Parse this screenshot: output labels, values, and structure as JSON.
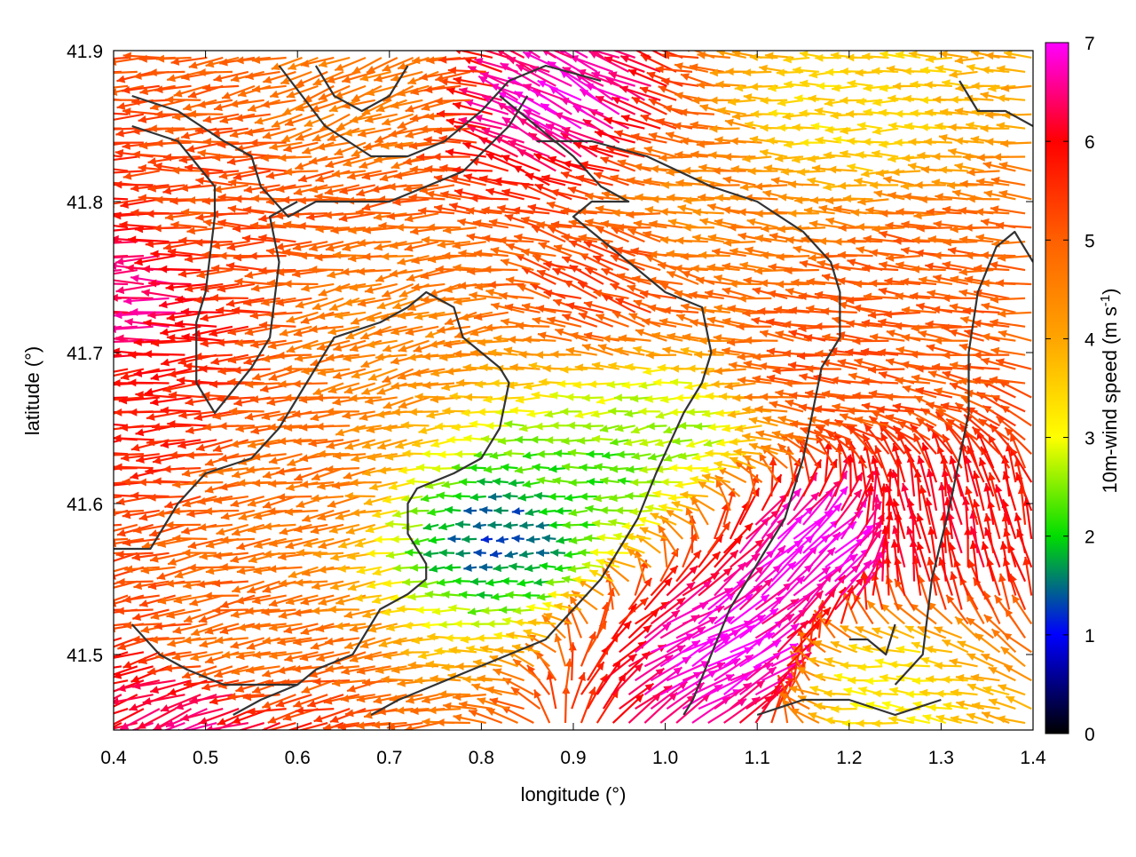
{
  "chart_data": {
    "type": "vector-field",
    "xlabel": "longitude (°)",
    "ylabel": "latitude (°)",
    "xlim": [
      0.4,
      1.4
    ],
    "ylim": [
      41.45,
      41.9
    ],
    "x_ticks": [
      "0.4",
      "0.5",
      "0.6",
      "0.7",
      "0.8",
      "0.9",
      "1.0",
      "1.1",
      "1.2",
      "1.3",
      "1.4"
    ],
    "y_ticks": [
      "41.5",
      "41.6",
      "41.7",
      "41.8",
      "41.9"
    ],
    "grid": false,
    "colorbar": {
      "label_main": "10m-wind speed (m s",
      "label_sup": "-1",
      "label_end": ")",
      "range": [
        0,
        7
      ],
      "ticks": [
        "0",
        "1",
        "2",
        "3",
        "4",
        "5",
        "6",
        "7"
      ],
      "colors": [
        "#000000",
        "#0000ff",
        "#00dd00",
        "#ffff00",
        "#ffa500",
        "#ff6000",
        "#ff0000",
        "#ff00ff"
      ]
    },
    "wind_regions": [
      {
        "lon": 0.43,
        "lat": 41.74,
        "speed": 6.5,
        "dir_deg": 180
      },
      {
        "lon": 0.45,
        "lat": 41.66,
        "speed": 5.8,
        "dir_deg": 185
      },
      {
        "lon": 0.55,
        "lat": 41.78,
        "speed": 5.2,
        "dir_deg": 180
      },
      {
        "lon": 0.6,
        "lat": 41.62,
        "speed": 4.8,
        "dir_deg": 190
      },
      {
        "lon": 0.72,
        "lat": 41.72,
        "speed": 4.5,
        "dir_deg": 195
      },
      {
        "lon": 0.7,
        "lat": 41.87,
        "speed": 4.6,
        "dir_deg": 200
      },
      {
        "lon": 0.9,
        "lat": 41.86,
        "speed": 6.8,
        "dir_deg": 150
      },
      {
        "lon": 0.95,
        "lat": 41.74,
        "speed": 5.3,
        "dir_deg": 160
      },
      {
        "lon": 1.05,
        "lat": 41.8,
        "speed": 4.5,
        "dir_deg": 175
      },
      {
        "lon": 1.2,
        "lat": 41.86,
        "speed": 3.4,
        "dir_deg": 180
      },
      {
        "lon": 1.3,
        "lat": 41.74,
        "speed": 5.0,
        "dir_deg": 175
      },
      {
        "lon": 0.83,
        "lat": 41.58,
        "speed": 1.4,
        "dir_deg": 185
      },
      {
        "lon": 0.92,
        "lat": 41.62,
        "speed": 2.2,
        "dir_deg": 180
      },
      {
        "lon": 1.0,
        "lat": 41.65,
        "speed": 2.6,
        "dir_deg": 190
      },
      {
        "lon": 1.15,
        "lat": 41.56,
        "speed": 7.0,
        "dir_deg": 40
      },
      {
        "lon": 1.05,
        "lat": 41.5,
        "speed": 7.0,
        "dir_deg": 30
      },
      {
        "lon": 1.3,
        "lat": 41.57,
        "speed": 6.0,
        "dir_deg": 100
      },
      {
        "lon": 1.25,
        "lat": 41.48,
        "speed": 3.2,
        "dir_deg": 175
      },
      {
        "lon": 0.55,
        "lat": 41.5,
        "speed": 4.8,
        "dir_deg": 190
      },
      {
        "lon": 0.5,
        "lat": 41.46,
        "speed": 6.5,
        "dir_deg": 200
      },
      {
        "lon": 1.2,
        "lat": 41.7,
        "speed": 5.2,
        "dir_deg": 175
      }
    ],
    "contours": [
      [
        [
          0.42,
          41.87
        ],
        [
          0.47,
          41.86
        ],
        [
          0.52,
          41.84
        ],
        [
          0.55,
          41.83
        ],
        [
          0.56,
          41.81
        ],
        [
          0.59,
          41.79
        ],
        [
          0.62,
          41.8
        ],
        [
          0.7,
          41.8
        ],
        [
          0.78,
          41.82
        ],
        [
          0.83,
          41.85
        ],
        [
          0.85,
          41.87
        ]
      ],
      [
        [
          0.42,
          41.85
        ],
        [
          0.47,
          41.84
        ],
        [
          0.51,
          41.81
        ],
        [
          0.51,
          41.79
        ],
        [
          0.5,
          41.74
        ],
        [
          0.49,
          41.72
        ],
        [
          0.49,
          41.68
        ],
        [
          0.51,
          41.66
        ],
        [
          0.55,
          41.69
        ],
        [
          0.57,
          41.71
        ],
        [
          0.58,
          41.76
        ],
        [
          0.57,
          41.79
        ],
        [
          0.6,
          41.8
        ]
      ],
      [
        [
          0.62,
          41.89
        ],
        [
          0.64,
          41.87
        ],
        [
          0.67,
          41.86
        ],
        [
          0.7,
          41.87
        ],
        [
          0.72,
          41.89
        ]
      ],
      [
        [
          0.58,
          41.89
        ],
        [
          0.63,
          41.85
        ],
        [
          0.68,
          41.83
        ],
        [
          0.72,
          41.83
        ],
        [
          0.76,
          41.84
        ],
        [
          0.8,
          41.86
        ],
        [
          0.83,
          41.88
        ],
        [
          0.87,
          41.89
        ],
        [
          0.93,
          41.88
        ]
      ],
      [
        [
          0.4,
          41.57
        ],
        [
          0.44,
          41.57
        ],
        [
          0.47,
          41.6
        ],
        [
          0.5,
          41.62
        ],
        [
          0.55,
          41.63
        ],
        [
          0.58,
          41.65
        ],
        [
          0.62,
          41.69
        ],
        [
          0.64,
          41.71
        ],
        [
          0.69,
          41.72
        ],
        [
          0.72,
          41.73
        ],
        [
          0.74,
          41.74
        ],
        [
          0.77,
          41.73
        ],
        [
          0.78,
          41.71
        ],
        [
          0.82,
          41.69
        ],
        [
          0.83,
          41.68
        ],
        [
          0.82,
          41.65
        ],
        [
          0.8,
          41.63
        ],
        [
          0.77,
          41.62
        ],
        [
          0.73,
          41.61
        ],
        [
          0.72,
          41.6
        ],
        [
          0.72,
          41.58
        ],
        [
          0.74,
          41.56
        ],
        [
          0.74,
          41.55
        ],
        [
          0.72,
          41.54
        ],
        [
          0.69,
          41.53
        ],
        [
          0.66,
          41.5
        ],
        [
          0.62,
          41.49
        ],
        [
          0.6,
          41.48
        ],
        [
          0.56,
          41.47
        ],
        [
          0.53,
          41.46
        ]
      ],
      [
        [
          0.82,
          41.87
        ],
        [
          0.86,
          41.85
        ],
        [
          0.9,
          41.83
        ],
        [
          0.93,
          41.81
        ],
        [
          0.96,
          41.8
        ],
        [
          0.92,
          41.8
        ],
        [
          0.9,
          41.79
        ],
        [
          0.92,
          41.78
        ],
        [
          0.96,
          41.76
        ],
        [
          1.0,
          41.74
        ],
        [
          1.04,
          41.73
        ],
        [
          1.05,
          41.7
        ],
        [
          1.04,
          41.68
        ],
        [
          1.02,
          41.66
        ],
        [
          0.99,
          41.62
        ],
        [
          0.97,
          41.59
        ],
        [
          0.95,
          41.57
        ],
        [
          0.93,
          41.55
        ],
        [
          0.9,
          41.53
        ],
        [
          0.87,
          41.51
        ],
        [
          0.83,
          41.5
        ],
        [
          0.79,
          41.49
        ],
        [
          0.75,
          41.48
        ],
        [
          0.71,
          41.47
        ],
        [
          0.68,
          41.46
        ]
      ],
      [
        [
          0.86,
          41.84
        ],
        [
          0.92,
          41.84
        ],
        [
          0.98,
          41.83
        ],
        [
          1.05,
          41.81
        ],
        [
          1.1,
          41.8
        ],
        [
          1.15,
          41.78
        ],
        [
          1.18,
          41.76
        ],
        [
          1.19,
          41.74
        ],
        [
          1.19,
          41.71
        ],
        [
          1.17,
          41.69
        ],
        [
          1.16,
          41.66
        ],
        [
          1.15,
          41.63
        ],
        [
          1.13,
          41.59
        ],
        [
          1.1,
          41.56
        ],
        [
          1.07,
          41.53
        ],
        [
          1.05,
          41.5
        ],
        [
          1.03,
          41.47
        ],
        [
          1.02,
          41.46
        ]
      ],
      [
        [
          0.42,
          41.52
        ],
        [
          0.45,
          41.5
        ],
        [
          0.48,
          41.49
        ],
        [
          0.52,
          41.48
        ],
        [
          0.56,
          41.48
        ],
        [
          0.6,
          41.48
        ]
      ],
      [
        [
          1.25,
          41.48
        ],
        [
          1.28,
          41.5
        ],
        [
          1.29,
          41.55
        ],
        [
          1.31,
          41.6
        ],
        [
          1.33,
          41.66
        ],
        [
          1.33,
          41.7
        ],
        [
          1.34,
          41.74
        ],
        [
          1.36,
          41.77
        ],
        [
          1.38,
          41.78
        ],
        [
          1.4,
          41.76
        ]
      ],
      [
        [
          1.2,
          41.51
        ],
        [
          1.22,
          41.51
        ],
        [
          1.24,
          41.5
        ],
        [
          1.25,
          41.52
        ]
      ],
      [
        [
          1.1,
          41.46
        ],
        [
          1.15,
          41.47
        ],
        [
          1.2,
          41.47
        ],
        [
          1.25,
          41.46
        ],
        [
          1.3,
          41.47
        ]
      ],
      [
        [
          1.32,
          41.88
        ],
        [
          1.34,
          41.86
        ],
        [
          1.37,
          41.86
        ],
        [
          1.4,
          41.85
        ]
      ]
    ]
  }
}
